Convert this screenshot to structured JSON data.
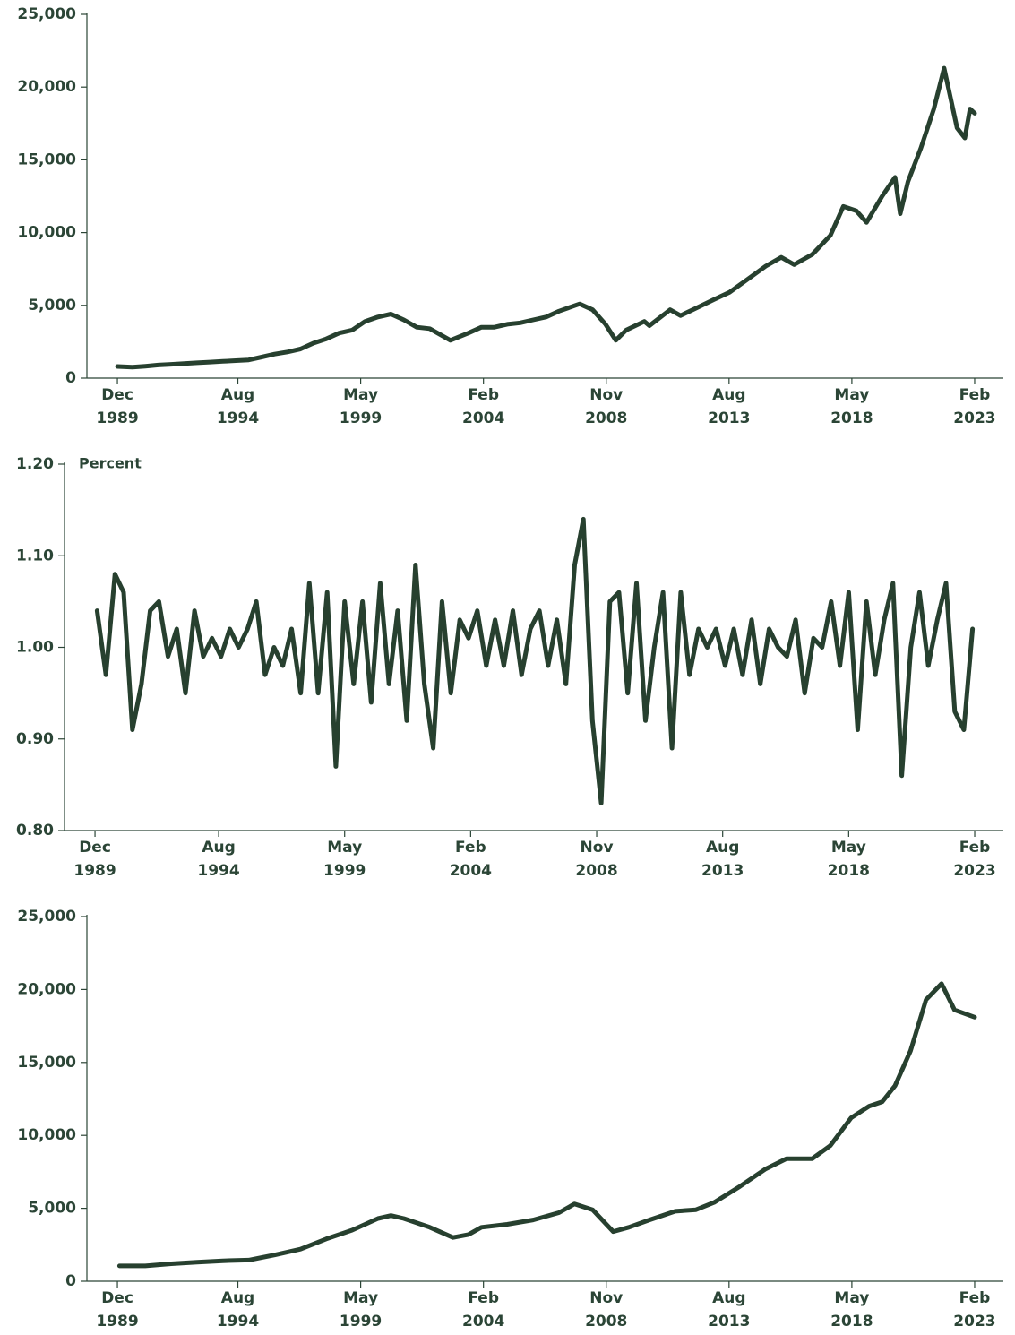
{
  "chart_data": [
    {
      "type": "line",
      "color": "#27402f",
      "x": [
        1989.92,
        1990.5,
        1991,
        1991.5,
        1992,
        1992.5,
        1993,
        1993.5,
        1994,
        1994.5,
        1995,
        1995.5,
        1996,
        1996.5,
        1997,
        1997.5,
        1998,
        1998.5,
        1999,
        1999.5,
        2000,
        2000.5,
        2001,
        2001.5,
        2002,
        2002.5,
        2002.8,
        2003.5,
        2004,
        2004.5,
        2005,
        2005.5,
        2006,
        2006.5,
        2007,
        2007.8,
        2008.3,
        2008.8,
        2009.2,
        2009.6,
        2010.3,
        2010.5,
        2011.3,
        2011.7,
        2012.3,
        2013,
        2013.6,
        2014.3,
        2015,
        2015.6,
        2016.1,
        2016.8,
        2017.5,
        2018,
        2018.5,
        2018.9,
        2019.5,
        2020,
        2020.2,
        2020.5,
        2021,
        2021.5,
        2021.9,
        2022.4,
        2022.7,
        2022.9,
        2023.08
      ],
      "values": [
        800,
        750,
        820,
        900,
        950,
        1000,
        1050,
        1100,
        1150,
        1200,
        1250,
        1450,
        1650,
        1800,
        2000,
        2400,
        2700,
        3100,
        3300,
        3900,
        4200,
        4400,
        4000,
        3500,
        3400,
        2900,
        2600,
        3100,
        3500,
        3500,
        3700,
        3800,
        4000,
        4200,
        4600,
        5100,
        4700,
        3700,
        2600,
        3300,
        3900,
        3600,
        4700,
        4300,
        4800,
        5400,
        5900,
        6800,
        7700,
        8300,
        7800,
        8500,
        9800,
        11800,
        11500,
        10700,
        12500,
        13800,
        11300,
        13500,
        15800,
        18500,
        21300,
        17200,
        16500,
        18500,
        18200
      ],
      "xlim": [
        1988.74,
        2024.19
      ],
      "xticks": [
        {
          "value": 1989.92,
          "label": "Dec 1989"
        },
        {
          "value": 1994.58,
          "label": "Aug 1994"
        },
        {
          "value": 1999.33,
          "label": "May 1999"
        },
        {
          "value": 2004.08,
          "label": "Feb 2004"
        },
        {
          "value": 2008.83,
          "label": "Nov 2008"
        },
        {
          "value": 2013.58,
          "label": "Aug 2013"
        },
        {
          "value": 2018.33,
          "label": "May 2018"
        },
        {
          "value": 2023.08,
          "label": "Feb 2023"
        }
      ],
      "ylim": [
        0,
        25000
      ],
      "yticks": [
        0,
        {
          "value": 5000,
          "label": "5,000"
        },
        {
          "value": 10000,
          "label": "10,000"
        },
        {
          "value": 15000,
          "label": "15,000"
        },
        {
          "value": 20000,
          "label": "20,000"
        },
        {
          "value": 25000,
          "label": "25,000"
        }
      ]
    },
    {
      "type": "line",
      "color": "#27402f",
      "y_label": "Percent",
      "x": [
        1990,
        1990.33,
        1990.67,
        1991,
        1991.33,
        1991.67,
        1992,
        1992.33,
        1992.67,
        1993,
        1993.33,
        1993.67,
        1994,
        1994.33,
        1994.67,
        1995,
        1995.33,
        1995.67,
        1996,
        1996.33,
        1996.67,
        1997,
        1997.33,
        1997.67,
        1998,
        1998.33,
        1998.67,
        1999,
        1999.33,
        1999.67,
        2000,
        2000.33,
        2000.67,
        2001,
        2001.33,
        2001.67,
        2002,
        2002.33,
        2002.67,
        2003,
        2003.33,
        2003.67,
        2004,
        2004.33,
        2004.67,
        2005,
        2005.33,
        2005.67,
        2006,
        2006.33,
        2006.67,
        2007,
        2007.33,
        2007.67,
        2008,
        2008.33,
        2008.67,
        2009,
        2009.33,
        2009.67,
        2010,
        2010.33,
        2010.67,
        2011,
        2011.33,
        2011.67,
        2012,
        2012.33,
        2012.67,
        2013,
        2013.33,
        2013.67,
        2014,
        2014.33,
        2014.67,
        2015,
        2015.33,
        2015.67,
        2016,
        2016.33,
        2016.67,
        2017,
        2017.33,
        2017.67,
        2018,
        2018.33,
        2018.67,
        2019,
        2019.33,
        2019.67,
        2020,
        2020.33,
        2020.67,
        2021,
        2021.33,
        2021.67,
        2022,
        2022.33,
        2022.67,
        2023
      ],
      "values": [
        1.04,
        0.97,
        1.08,
        1.06,
        0.91,
        0.96,
        1.04,
        1.05,
        0.99,
        1.02,
        0.95,
        1.04,
        0.99,
        1.01,
        0.99,
        1.02,
        1.0,
        1.02,
        1.05,
        0.97,
        1.0,
        0.98,
        1.02,
        0.95,
        1.07,
        0.95,
        1.06,
        0.87,
        1.05,
        0.96,
        1.05,
        0.94,
        1.07,
        0.96,
        1.04,
        0.92,
        1.09,
        0.96,
        0.89,
        1.05,
        0.95,
        1.03,
        1.01,
        1.04,
        0.98,
        1.03,
        0.98,
        1.04,
        0.97,
        1.02,
        1.04,
        0.98,
        1.03,
        0.96,
        1.09,
        1.14,
        0.92,
        0.83,
        1.05,
        1.06,
        0.95,
        1.07,
        0.92,
        1.0,
        1.06,
        0.89,
        1.06,
        0.97,
        1.02,
        1.0,
        1.02,
        0.98,
        1.02,
        0.97,
        1.03,
        0.96,
        1.02,
        1.0,
        0.99,
        1.03,
        0.95,
        1.01,
        1.0,
        1.05,
        0.98,
        1.06,
        0.91,
        1.05,
        0.97,
        1.03,
        1.07,
        0.86,
        1.0,
        1.06,
        0.98,
        1.03,
        1.07,
        0.93,
        0.91,
        1.02
      ],
      "xlim": [
        1988.77,
        2024.16
      ],
      "xticks": [
        {
          "value": 1989.92,
          "label": "Dec 1989"
        },
        {
          "value": 1994.58,
          "label": "Aug 1994"
        },
        {
          "value": 1999.33,
          "label": "May 1999"
        },
        {
          "value": 2004.08,
          "label": "Feb 2004"
        },
        {
          "value": 2008.83,
          "label": "Nov 2008"
        },
        {
          "value": 2013.58,
          "label": "Aug 2013"
        },
        {
          "value": 2018.33,
          "label": "May 2018"
        },
        {
          "value": 2023.08,
          "label": "Feb 2023"
        }
      ],
      "ylim": [
        0.8,
        1.2
      ],
      "yticks": [
        {
          "value": 0.8,
          "label": "0.80"
        },
        {
          "value": 0.9,
          "label": "0.90"
        },
        {
          "value": 1.0,
          "label": "1.00"
        },
        {
          "value": 1.1,
          "label": "1.10"
        },
        {
          "value": 1.2,
          "label": "1.20"
        }
      ]
    },
    {
      "type": "line",
      "color": "#27402f",
      "x": [
        1990,
        1991,
        1992,
        1993,
        1994,
        1995,
        1996,
        1997,
        1998,
        1999,
        2000,
        2000.5,
        2001,
        2002,
        2002.9,
        2003.5,
        2004,
        2005,
        2006,
        2007,
        2007.6,
        2008.3,
        2009.1,
        2009.7,
        2010.5,
        2011.5,
        2012.3,
        2013,
        2014,
        2015,
        2015.8,
        2016.8,
        2017.5,
        2018.3,
        2019,
        2019.5,
        2020,
        2020.6,
        2021.2,
        2021.8,
        2022.3,
        2023.08
      ],
      "values": [
        1050,
        1050,
        1200,
        1300,
        1400,
        1450,
        1800,
        2200,
        2900,
        3500,
        4300,
        4500,
        4300,
        3700,
        3000,
        3200,
        3700,
        3900,
        4200,
        4700,
        5300,
        4900,
        3400,
        3700,
        4200,
        4800,
        4900,
        5400,
        6500,
        7700,
        8400,
        8400,
        9300,
        11200,
        12000,
        12300,
        13400,
        15800,
        19300,
        20400,
        18600,
        18100
      ],
      "xlim": [
        1988.74,
        2024.19
      ],
      "xticks": [
        {
          "value": 1989.92,
          "label": "Dec 1989"
        },
        {
          "value": 1994.58,
          "label": "Aug 1994"
        },
        {
          "value": 1999.33,
          "label": "May 1999"
        },
        {
          "value": 2004.08,
          "label": "Feb 2004"
        },
        {
          "value": 2008.83,
          "label": "Nov 2008"
        },
        {
          "value": 2013.58,
          "label": "Aug 2013"
        },
        {
          "value": 2018.33,
          "label": "May 2018"
        },
        {
          "value": 2023.08,
          "label": "Feb 2023"
        }
      ],
      "ylim": [
        0,
        25000
      ],
      "yticks": [
        0,
        {
          "value": 5000,
          "label": "5,000"
        },
        {
          "value": 10000,
          "label": "10,000"
        },
        {
          "value": 15000,
          "label": "15,000"
        },
        {
          "value": 20000,
          "label": "20,000"
        },
        {
          "value": 25000,
          "label": "25,000"
        }
      ]
    }
  ]
}
